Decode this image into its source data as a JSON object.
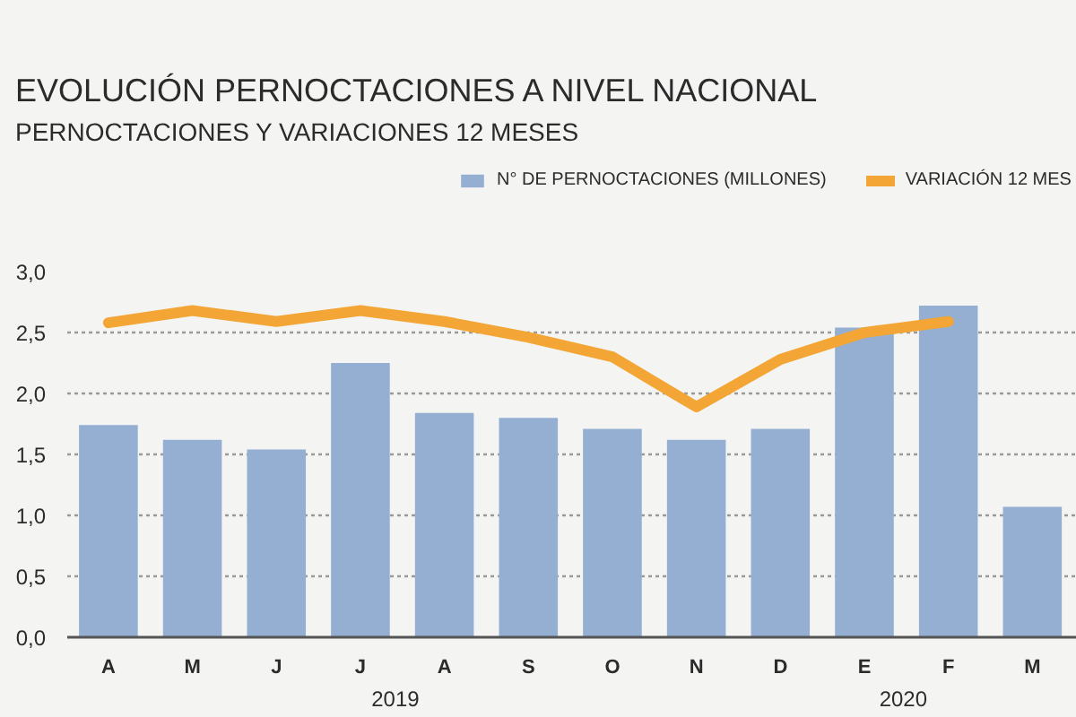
{
  "chart_data": {
    "type": "bar",
    "title": "EVOLUCIÓN PERNOCTACIONES A NIVEL NACIONAL",
    "subtitle": "PERNOCTACIONES Y VARIACIONES 12 MESES",
    "categories": [
      "A",
      "M",
      "J",
      "J",
      "A",
      "S",
      "O",
      "N",
      "D",
      "E",
      "F",
      "M"
    ],
    "series": [
      {
        "name": "N° DE PERNOCTACIONES (MILLONES)",
        "color": "#94afd1",
        "values": [
          1.74,
          1.62,
          1.54,
          2.25,
          1.84,
          1.8,
          1.71,
          1.62,
          1.71,
          2.54,
          2.72,
          1.07
        ]
      },
      {
        "name": "VARIACIÓN 12 MES",
        "type": "line",
        "color": "#f3a535",
        "values": [
          2.58,
          2.68,
          2.59,
          2.68,
          2.59,
          2.46,
          2.3,
          1.89,
          2.28,
          2.5,
          2.59,
          null
        ]
      }
    ],
    "ylim": [
      0,
      3
    ],
    "yticks": [
      {
        "value": 0,
        "label": "0,0"
      },
      {
        "value": 0.5,
        "label": "0,5"
      },
      {
        "value": 1,
        "label": "1,0"
      },
      {
        "value": 1.5,
        "label": "1,5"
      },
      {
        "value": 2,
        "label": "2,0"
      },
      {
        "value": 2.5,
        "label": "2,5"
      },
      {
        "value": 3,
        "label": "3,0"
      }
    ],
    "grid": "y",
    "legend": "top right",
    "annotations": [
      "2019",
      "2020"
    ]
  }
}
